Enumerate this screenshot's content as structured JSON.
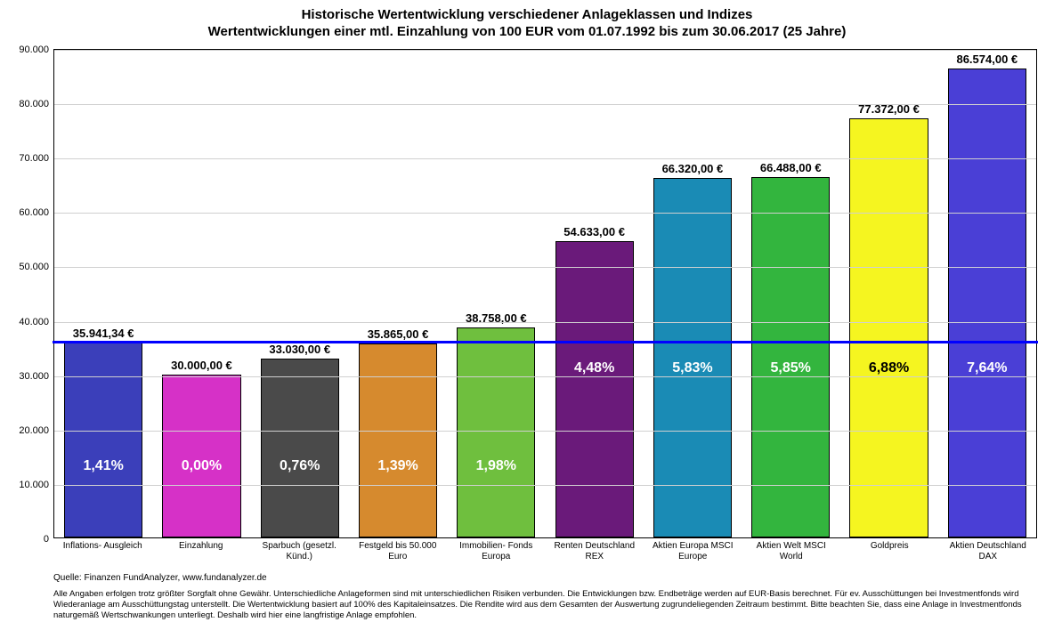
{
  "title_line1": "Historische Wertentwicklung verschiedener Anlageklassen und Indizes",
  "title_line2": "Wertentwicklungen einer mtl. Einzahlung von 100 EUR vom 01.07.1992 bis zum 30.06.2017 (25 Jahre)",
  "chart": {
    "type": "bar",
    "ylim": [
      0,
      90000
    ],
    "ytick_step": 10000,
    "ytick_labels": [
      "0",
      "10.000",
      "20.000",
      "30.000",
      "40.000",
      "50.000",
      "60.000",
      "70.000",
      "80.000",
      "90.000"
    ],
    "reference_line_value": 35941.34,
    "reference_line_color": "#0000ff",
    "grid_color": "#d0d0d0",
    "background_color": "#ffffff",
    "bar_border_color": "#000000",
    "bars": [
      {
        "category": "Inflations- Ausgleich",
        "value": 35941.34,
        "value_label": "35.941,34 €",
        "pct_label": "1,41%",
        "color": "#3b3fba",
        "pct_color": "#ffffff",
        "pct_pos": "low"
      },
      {
        "category": "Einzahlung",
        "value": 30000,
        "value_label": "30.000,00 €",
        "pct_label": "0,00%",
        "color": "#d631c7",
        "pct_color": "#ffffff",
        "pct_pos": "low"
      },
      {
        "category": "Sparbuch (gesetzl. Künd.)",
        "value": 33030,
        "value_label": "33.030,00 €",
        "pct_label": "0,76%",
        "color": "#4a4a4a",
        "pct_color": "#ffffff",
        "pct_pos": "low"
      },
      {
        "category": "Festgeld bis 50.000 Euro",
        "value": 35865,
        "value_label": "35.865,00 €",
        "pct_label": "1,39%",
        "color": "#d68a2e",
        "pct_color": "#ffffff",
        "pct_pos": "low"
      },
      {
        "category": "Immobilien- Fonds Europa",
        "value": 38758,
        "value_label": "38.758,00 €",
        "pct_label": "1,98%",
        "color": "#6fbf3e",
        "pct_color": "#ffffff",
        "pct_pos": "low"
      },
      {
        "category": "Renten Deutschland REX",
        "value": 54633,
        "value_label": "54.633,00 €",
        "pct_label": "4,48%",
        "color": "#6a1a7a",
        "pct_color": "#ffffff",
        "pct_pos": "mid"
      },
      {
        "category": "Aktien Europa MSCI Europe",
        "value": 66320,
        "value_label": "66.320,00 €",
        "pct_label": "5,83%",
        "color": "#1a8bb5",
        "pct_color": "#ffffff",
        "pct_pos": "mid"
      },
      {
        "category": "Aktien Welt MSCI World",
        "value": 66488,
        "value_label": "66.488,00 €",
        "pct_label": "5,85%",
        "color": "#33b53e",
        "pct_color": "#ffffff",
        "pct_pos": "mid"
      },
      {
        "category": "Goldpreis",
        "value": 77372,
        "value_label": "77.372,00 €",
        "pct_label": "6,88%",
        "color": "#f5f520",
        "pct_color": "#000000",
        "pct_pos": "mid"
      },
      {
        "category": "Aktien Deutschland DAX",
        "value": 86574,
        "value_label": "86.574,00 €",
        "pct_label": "7,64%",
        "color": "#4a3fd6",
        "pct_color": "#ffffff",
        "pct_pos": "mid"
      }
    ]
  },
  "source": "Quelle: Finanzen FundAnalyzer, www.fundanalyzer.de",
  "disclaimer": "Alle Angaben erfolgen trotz größter Sorgfalt ohne Gewähr. Unterschiedliche Anlageformen sind mit unterschiedlichen Risiken verbunden. Die Entwicklungen bzw. Endbeträge werden auf EUR-Basis berechnet. Für ev. Ausschüttungen bei Investmentfonds wird Wiederanlage am Ausschüttungstag unterstellt. Die Wertentwicklung basiert auf 100% des Kapitaleinsatzes. Die Rendite wird aus dem Gesamten der Auswertung zugrundeliegenden Zeitraum bestimmt. Bitte beachten Sie, dass eine Anlage in Investmentfonds naturgemäß Wertschwankungen unterliegt. Deshalb wird hier eine langfristige Anlage empfohlen."
}
